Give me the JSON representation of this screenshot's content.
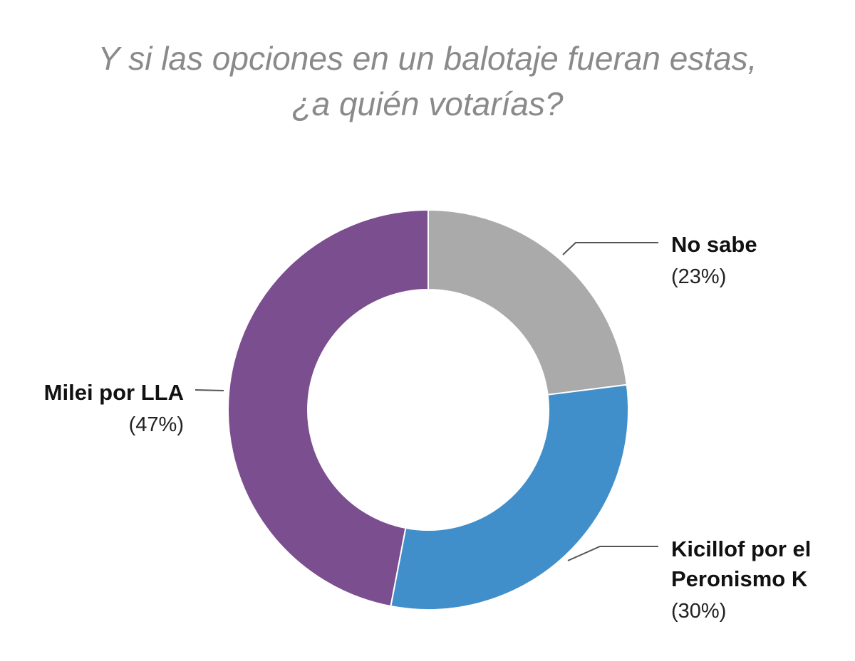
{
  "chart_data": {
    "type": "pie",
    "style": "donut",
    "title_lines": [
      "Y si las opciones en un balotaje fueran estas,",
      "¿a quién votarías?"
    ],
    "slices": [
      {
        "name_lines": [
          "No sabe"
        ],
        "value": 23,
        "value_label": "(23%)",
        "color": "#aaaaaa"
      },
      {
        "name_lines": [
          "Kicillof por el",
          "Peronismo K"
        ],
        "value": 30,
        "value_label": "(30%)",
        "color": "#418fca"
      },
      {
        "name_lines": [
          "Milei por LLA"
        ],
        "value": 47,
        "value_label": "(47%)",
        "color": "#7b4e8f"
      }
    ],
    "legend": "none",
    "start": "top",
    "direction": "clockwise"
  }
}
